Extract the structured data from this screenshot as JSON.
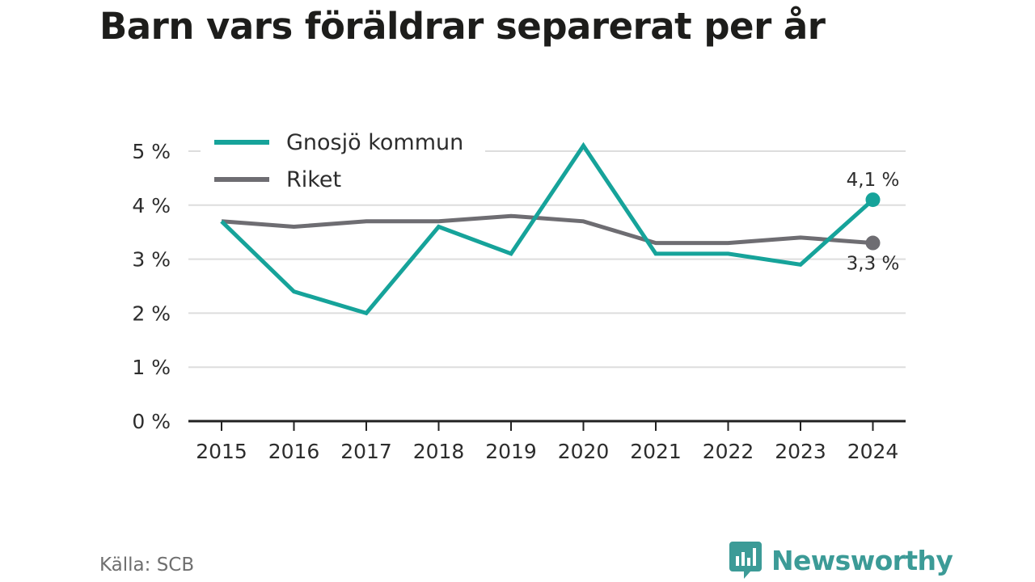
{
  "colors": {
    "gnosjo": "#16a39a",
    "riket": "#6e6d72",
    "grid": "#dddddd",
    "axis": "#222222",
    "text": "#2d2d2d",
    "brand": "#3c9b97"
  },
  "chart_data": {
    "type": "line",
    "title": "Barn vars föräldrar separerat per år",
    "categories": [
      "2015",
      "2016",
      "2017",
      "2018",
      "2019",
      "2020",
      "2021",
      "2022",
      "2023",
      "2024"
    ],
    "series": [
      {
        "name": "Gnosjö kommun",
        "values": [
          3.7,
          2.4,
          2.0,
          3.6,
          3.1,
          5.1,
          3.1,
          3.1,
          2.9,
          4.1
        ],
        "end_label": "4,1 %",
        "color": "#16a39a"
      },
      {
        "name": "Riket",
        "values": [
          3.7,
          3.6,
          3.7,
          3.7,
          3.8,
          3.7,
          3.3,
          3.3,
          3.4,
          3.3
        ],
        "end_label": "3,3 %",
        "color": "#6e6d72"
      }
    ],
    "yticks": [
      0,
      1,
      2,
      3,
      4,
      5
    ],
    "ytick_labels": [
      "0 %",
      "1 %",
      "2 %",
      "3 %",
      "4 %",
      "5 %"
    ],
    "ylim": [
      0,
      5.5
    ],
    "grid": true,
    "legend_position": "top-left"
  },
  "footer": {
    "source": "Källa: SCB",
    "brand": "Newsworthy",
    "brand_icon": "newsworthy-logo-icon"
  }
}
